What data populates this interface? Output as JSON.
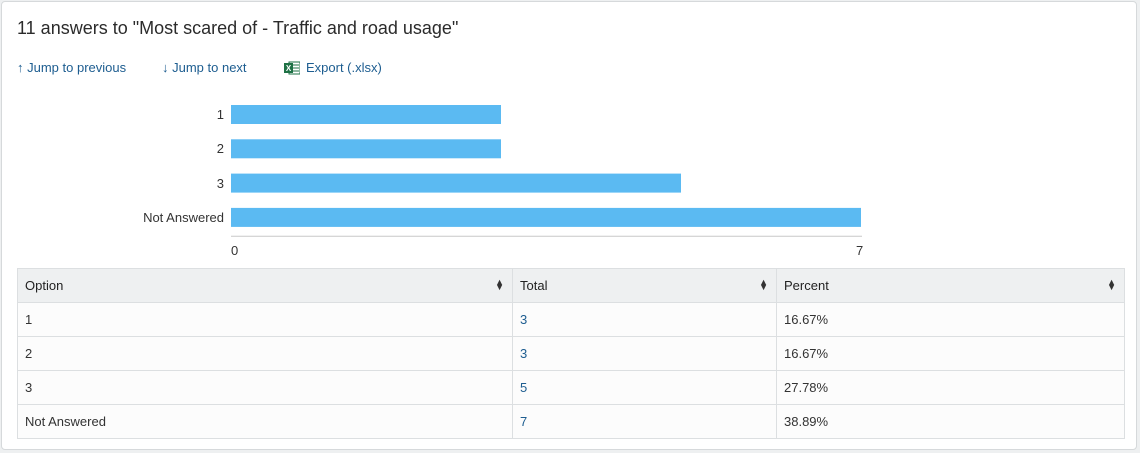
{
  "header": {
    "title": "11 answers to \"Most scared of - Traffic and road usage\""
  },
  "nav": {
    "prev_label": "↑ Jump to previous",
    "next_label": "↓ Jump to next",
    "export_label": "Export (.xlsx)",
    "export_icon": "excel-icon"
  },
  "chart_data": {
    "type": "bar",
    "orientation": "horizontal",
    "categories": [
      "1",
      "2",
      "3",
      "Not Answered"
    ],
    "values": [
      3,
      3,
      5,
      7
    ],
    "xlim": [
      0,
      7
    ],
    "x_ticks": [
      "0",
      "7"
    ],
    "bar_color": "#5bbaf2",
    "grid": false
  },
  "table": {
    "headers": [
      "Option",
      "Total",
      "Percent"
    ],
    "rows": [
      {
        "option": "1",
        "total": "3",
        "percent": "16.67%"
      },
      {
        "option": "2",
        "total": "3",
        "percent": "16.67%"
      },
      {
        "option": "3",
        "total": "5",
        "percent": "27.78%"
      },
      {
        "option": "Not Answered",
        "total": "7",
        "percent": "38.89%"
      }
    ]
  },
  "colors": {
    "link": "#1d5d90",
    "header_bg": "#eef0f1",
    "excel_green": "#1e7145"
  }
}
